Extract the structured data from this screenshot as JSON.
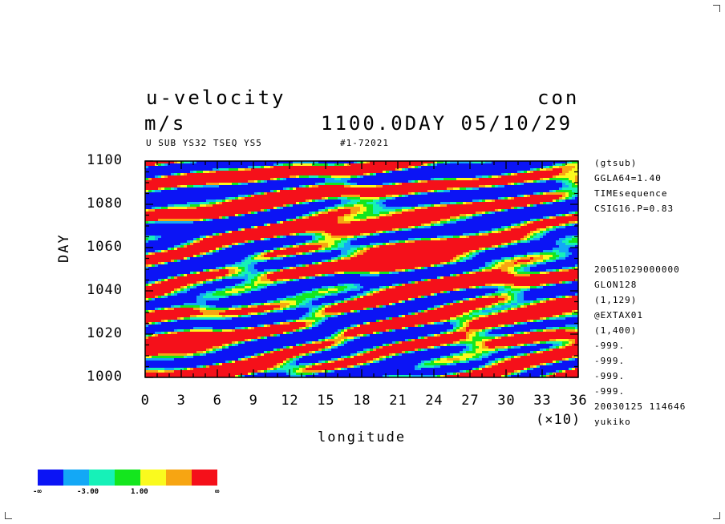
{
  "header": {
    "title": "u-velocity",
    "units": "m/s",
    "contour_mode": "con",
    "time_label": "1100.0DAY 05/10/29",
    "subtitle_left": "U SUB YS32 TSEQ YS5",
    "subtitle_right": "#1-72021"
  },
  "side_info": [
    "(gtsub)",
    "GGLA64=1.40",
    "TIMEsequence",
    "CSIG16.P=0.83",
    "",
    "",
    "",
    "20051029000000",
    "GLON128",
    "(1,129)",
    "@EXTAX01",
    "(1,400)",
    "-999.",
    "-999.",
    "-999.",
    "-999.",
    "20030125 114646",
    "yukiko"
  ],
  "colorbar": {
    "labels": [
      "-∞",
      "-3.00",
      "1.00",
      "∞"
    ],
    "colors": [
      "#0b14f5",
      "#13a8f6",
      "#16f1b8",
      "#14e61e",
      "#fafa1e",
      "#f7a512",
      "#f5101a"
    ]
  },
  "chart_data": {
    "type": "heatmap",
    "xlabel": "longitude",
    "xscale_label": "(×10)",
    "ylabel": "DAY",
    "x_ticks": [
      "0",
      "3",
      "6",
      "9",
      "12",
      "15",
      "18",
      "21",
      "24",
      "27",
      "30",
      "33",
      "36"
    ],
    "y_ticks": [
      "1000",
      "1020",
      "1040",
      "1060",
      "1080",
      "1100"
    ],
    "xlim": [
      0,
      36
    ],
    "ylim": [
      1000,
      1100
    ],
    "pattern": "banded westward-tilting contour field of u-velocity (longitude × day)"
  }
}
